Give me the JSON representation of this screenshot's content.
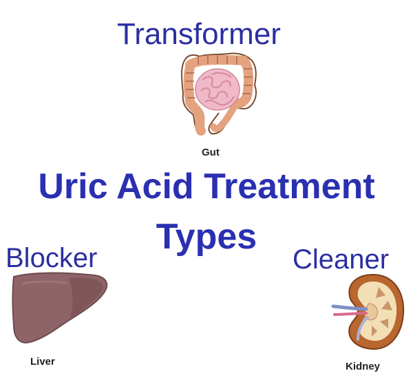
{
  "colors": {
    "label": "#2b2fa0",
    "title": "#2a30b0",
    "caption": "#222222",
    "gut": "#e4a27f",
    "liver": "#8e6468",
    "kidney": "#b9662f"
  },
  "title": {
    "line1": "Uric Acid Treatment",
    "line2": "Types"
  },
  "types": {
    "transformer": {
      "label": "Transformer",
      "organ_caption": "Gut",
      "icon": "intestine-icon"
    },
    "blocker": {
      "label": "Blocker",
      "organ_caption": "Liver",
      "icon": "liver-icon"
    },
    "cleaner": {
      "label": "Cleaner",
      "organ_caption": "Kidney",
      "icon": "kidney-icon"
    }
  }
}
